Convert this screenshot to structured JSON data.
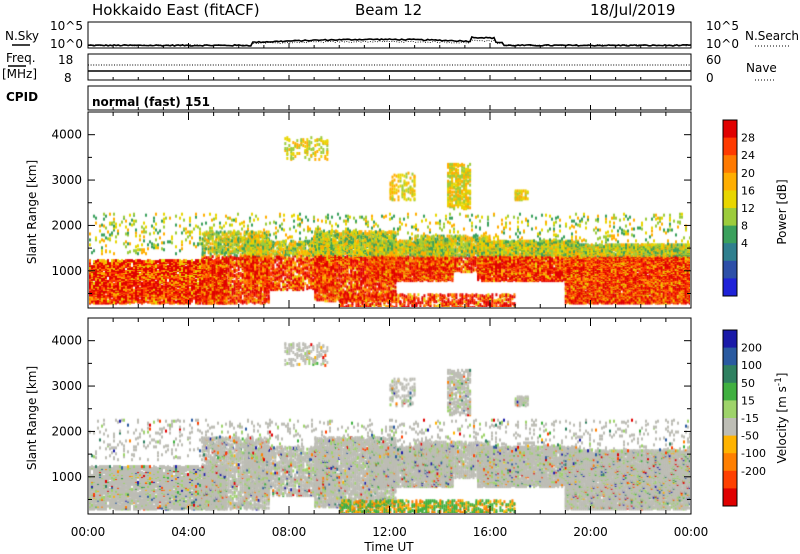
{
  "header": {
    "station": "Hokkaido East (fitACF)",
    "beam": "Beam 12",
    "date": "18/Jul/2019"
  },
  "noise_panel": {
    "left_label": "N.Sky",
    "right_label": "N.Search",
    "ticks": [
      "10^5",
      "10^0"
    ]
  },
  "freq_panel": {
    "left_label_top": "Freq.",
    "left_label_bottom": "[MHz]",
    "left_ticks": [
      "18",
      "8"
    ],
    "right_label": "Nave",
    "right_ticks": [
      "60",
      "0"
    ]
  },
  "cpid": {
    "label": "CPID",
    "text": "normal (fast) 151"
  },
  "chart_data": [
    {
      "type": "heatmap",
      "title": "",
      "ylabel": "Slant Range [km]",
      "xlabel": "",
      "x_ticks": [
        "00:00",
        "04:00",
        "08:00",
        "12:00",
        "16:00",
        "20:00",
        "00:00"
      ],
      "y_ticks": [
        1000,
        2000,
        3000,
        4000
      ],
      "colorbar": {
        "label": "Power [dB]",
        "ticks": [
          "28",
          "24",
          "20",
          "16",
          "12",
          "8",
          "4"
        ],
        "colors": [
          "#e00000",
          "#ff3a00",
          "#ff7a00",
          "#ffae00",
          "#e8d600",
          "#9ccc3c",
          "#3aa05c",
          "#2f7f8e",
          "#2d4fa8",
          "#1f22d8"
        ]
      }
    },
    {
      "type": "heatmap",
      "title": "",
      "ylabel": "Slant Range [km]",
      "xlabel": "Time UT",
      "x_ticks": [
        "00:00",
        "04:00",
        "08:00",
        "12:00",
        "16:00",
        "20:00",
        "00:00"
      ],
      "y_ticks": [
        1000,
        2000,
        3000,
        4000
      ],
      "colorbar": {
        "label": "Velocity [m s^-1]",
        "ticks": [
          "200",
          "100",
          "50",
          "15",
          "-15",
          "-50",
          "-100",
          "-200"
        ],
        "colors": [
          "#1a1aa8",
          "#2a5aa0",
          "#2f8060",
          "#40b040",
          "#9ed36a",
          "#bdbdb5",
          "#ffb300",
          "#ff7f00",
          "#ff4000",
          "#e00000"
        ]
      }
    }
  ]
}
